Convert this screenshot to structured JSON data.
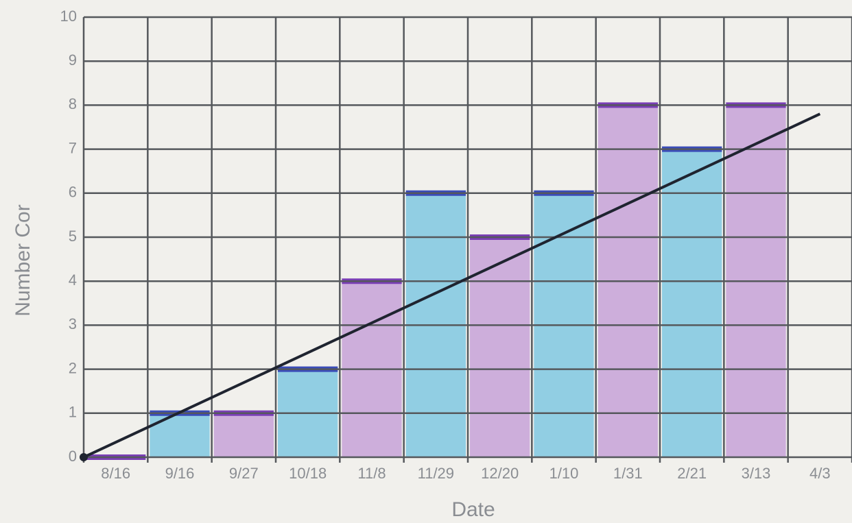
{
  "chart_data": {
    "type": "bar",
    "x_label": "Date",
    "y_label": "Number Cor",
    "categories": [
      "8/16",
      "9/16",
      "9/27",
      "10/18",
      "11/8",
      "11/29",
      "12/20",
      "1/10",
      "1/31",
      "2/21",
      "3/13",
      "4/3"
    ],
    "values": [
      0,
      1,
      1,
      2,
      4,
      6,
      5,
      6,
      8,
      7,
      8,
      null
    ],
    "colors": [
      "#c7a2d8",
      "#80c8e2",
      "#c7a2d8",
      "#80c8e2",
      "#c7a2d8",
      "#80c8e2",
      "#c7a2d8",
      "#80c8e2",
      "#c7a2d8",
      "#80c8e2",
      "#c7a2d8",
      null
    ],
    "top_colors": [
      "#7a3fb5",
      "#3a4cb8",
      "#7a3fb5",
      "#3a4cb8",
      "#7a3fb5",
      "#3a4cb8",
      "#7a3fb5",
      "#3a4cb8",
      "#7a3fb5",
      "#3a4cb8",
      "#7a3fb5",
      null
    ],
    "trend_line": {
      "values": [
        0,
        7.8
      ],
      "color": "#1f2430"
    },
    "ylim": [
      0,
      10
    ],
    "yticks": [
      0,
      1,
      2,
      3,
      4,
      5,
      6,
      7,
      8,
      9,
      10
    ],
    "grid": true
  }
}
